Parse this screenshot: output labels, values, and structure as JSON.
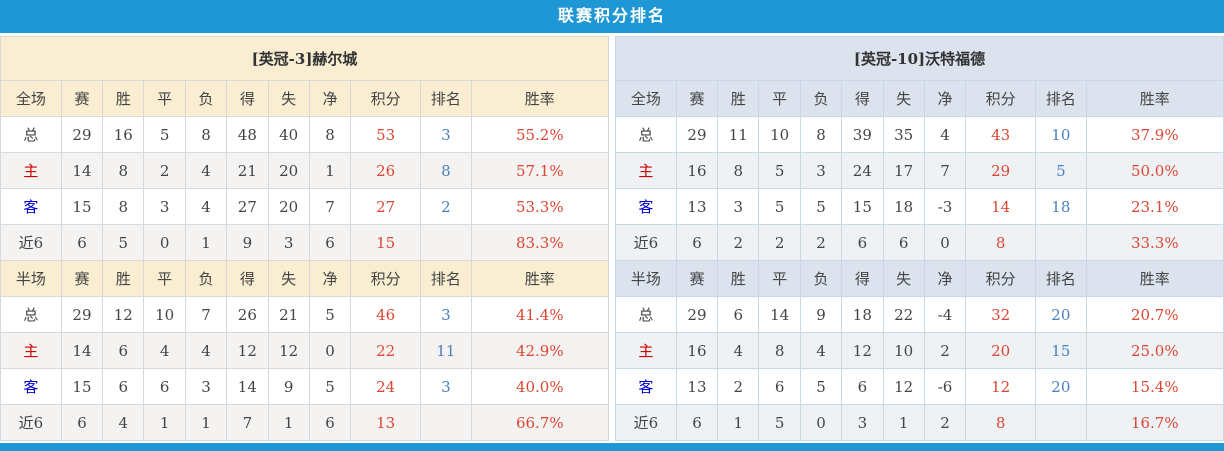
{
  "title": "联赛积分排名",
  "colors": {
    "title_bar": "#1e97d4",
    "left_header_bg": "#f9edd2",
    "right_header_bg": "#dce3ee",
    "left_border": "#d8d8d8",
    "right_border": "#c9d9e4",
    "row_alt_left": "#f4f3f1",
    "row_alt_right": "#eff2f5",
    "points_red": "#dc4632",
    "rank_blue": "#4a80c0",
    "home_red": "#cc0000",
    "away_blue": "#0000cc",
    "text_dark": "#444444"
  },
  "columns": {
    "stat_headers": [
      "赛",
      "胜",
      "平",
      "负",
      "得",
      "失",
      "净"
    ],
    "points_header": "积分",
    "rank_header": "排名",
    "rate_header": "胜率"
  },
  "teams": [
    {
      "name": "[英冠-3]赫尔城",
      "sections": [
        {
          "label": "全场",
          "rows": [
            {
              "label": "总",
              "values": [
                "29",
                "16",
                "5",
                "8",
                "48",
                "40",
                "8"
              ],
              "points": "53",
              "rank": "3",
              "rate": "55.2%"
            },
            {
              "label": "主",
              "values": [
                "14",
                "8",
                "2",
                "4",
                "21",
                "20",
                "1"
              ],
              "points": "26",
              "rank": "8",
              "rate": "57.1%"
            },
            {
              "label": "客",
              "values": [
                "15",
                "8",
                "3",
                "4",
                "27",
                "20",
                "7"
              ],
              "points": "27",
              "rank": "2",
              "rate": "53.3%"
            },
            {
              "label": "近6",
              "values": [
                "6",
                "5",
                "0",
                "1",
                "9",
                "3",
                "6"
              ],
              "points": "15",
              "rank": "",
              "rate": "83.3%"
            }
          ]
        },
        {
          "label": "半场",
          "rows": [
            {
              "label": "总",
              "values": [
                "29",
                "12",
                "10",
                "7",
                "26",
                "21",
                "5"
              ],
              "points": "46",
              "rank": "3",
              "rate": "41.4%"
            },
            {
              "label": "主",
              "values": [
                "14",
                "6",
                "4",
                "4",
                "12",
                "12",
                "0"
              ],
              "points": "22",
              "rank": "11",
              "rate": "42.9%"
            },
            {
              "label": "客",
              "values": [
                "15",
                "6",
                "6",
                "3",
                "14",
                "9",
                "5"
              ],
              "points": "24",
              "rank": "3",
              "rate": "40.0%"
            },
            {
              "label": "近6",
              "values": [
                "6",
                "4",
                "1",
                "1",
                "7",
                "1",
                "6"
              ],
              "points": "13",
              "rank": "",
              "rate": "66.7%"
            }
          ]
        }
      ]
    },
    {
      "name": "[英冠-10]沃特福德",
      "sections": [
        {
          "label": "全场",
          "rows": [
            {
              "label": "总",
              "values": [
                "29",
                "11",
                "10",
                "8",
                "39",
                "35",
                "4"
              ],
              "points": "43",
              "rank": "10",
              "rate": "37.9%"
            },
            {
              "label": "主",
              "values": [
                "16",
                "8",
                "5",
                "3",
                "24",
                "17",
                "7"
              ],
              "points": "29",
              "rank": "5",
              "rate": "50.0%"
            },
            {
              "label": "客",
              "values": [
                "13",
                "3",
                "5",
                "5",
                "15",
                "18",
                "-3"
              ],
              "points": "14",
              "rank": "18",
              "rate": "23.1%"
            },
            {
              "label": "近6",
              "values": [
                "6",
                "2",
                "2",
                "2",
                "6",
                "6",
                "0"
              ],
              "points": "8",
              "rank": "",
              "rate": "33.3%"
            }
          ]
        },
        {
          "label": "半场",
          "rows": [
            {
              "label": "总",
              "values": [
                "29",
                "6",
                "14",
                "9",
                "18",
                "22",
                "-4"
              ],
              "points": "32",
              "rank": "20",
              "rate": "20.7%"
            },
            {
              "label": "主",
              "values": [
                "16",
                "4",
                "8",
                "4",
                "12",
                "10",
                "2"
              ],
              "points": "20",
              "rank": "15",
              "rate": "25.0%"
            },
            {
              "label": "客",
              "values": [
                "13",
                "2",
                "6",
                "5",
                "6",
                "12",
                "-6"
              ],
              "points": "12",
              "rank": "20",
              "rate": "15.4%"
            },
            {
              "label": "近6",
              "values": [
                "6",
                "1",
                "5",
                "0",
                "3",
                "1",
                "2"
              ],
              "points": "8",
              "rank": "",
              "rate": "16.7%"
            }
          ]
        }
      ]
    }
  ]
}
